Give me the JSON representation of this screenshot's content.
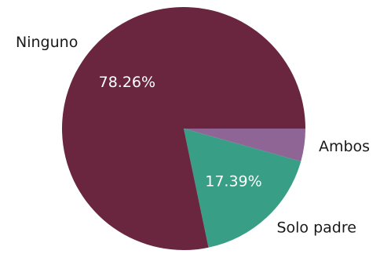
{
  "chart_data": {
    "type": "pie",
    "title": "",
    "slices": [
      {
        "label": "Ambos",
        "value": 4.35,
        "pct_label": "",
        "color": "#8f6595"
      },
      {
        "label": "Solo padre",
        "value": 17.39,
        "pct_label": "17.39%",
        "color": "#389e86"
      },
      {
        "label": "Ninguno",
        "value": 78.26,
        "pct_label": "78.26%",
        "color": "#6a253f"
      }
    ],
    "start_angle_deg": 0,
    "direction": "clockwise"
  }
}
